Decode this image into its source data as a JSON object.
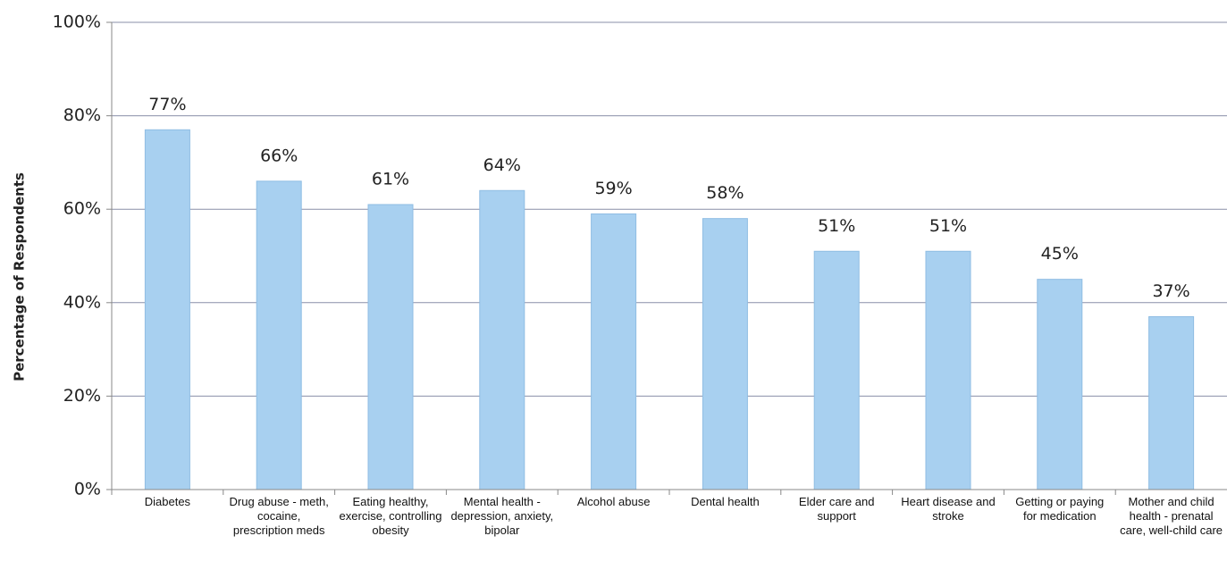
{
  "chart_data": {
    "type": "bar",
    "y_label": "Percentage of Respondents",
    "categories": [
      "Diabetes",
      "Drug abuse - meth, cocaine, prescription meds",
      "Eating healthy, exercise, controlling obesity",
      "Mental health - depression, anxiety, bipolar",
      "Alcohol abuse",
      "Dental health",
      "Elder care and support",
      "Heart disease and stroke",
      "Getting or paying for medication",
      "Mother and child health - prenatal care, well-child care"
    ],
    "values": [
      77,
      66,
      61,
      64,
      59,
      58,
      51,
      51,
      45,
      37
    ],
    "value_labels": [
      "77%",
      "66%",
      "61%",
      "64%",
      "59%",
      "58%",
      "51%",
      "51%",
      "45%",
      "37%"
    ],
    "color": "#a8d0f0",
    "ylim": [
      0,
      100
    ],
    "yticks": [
      {
        "value": 0,
        "label": "0%"
      },
      {
        "value": 20,
        "label": "20%"
      },
      {
        "value": 40,
        "label": "40%"
      },
      {
        "value": 60,
        "label": "60%"
      },
      {
        "value": 80,
        "label": "80%"
      },
      {
        "value": 100,
        "label": "100%"
      }
    ],
    "grid": true
  }
}
